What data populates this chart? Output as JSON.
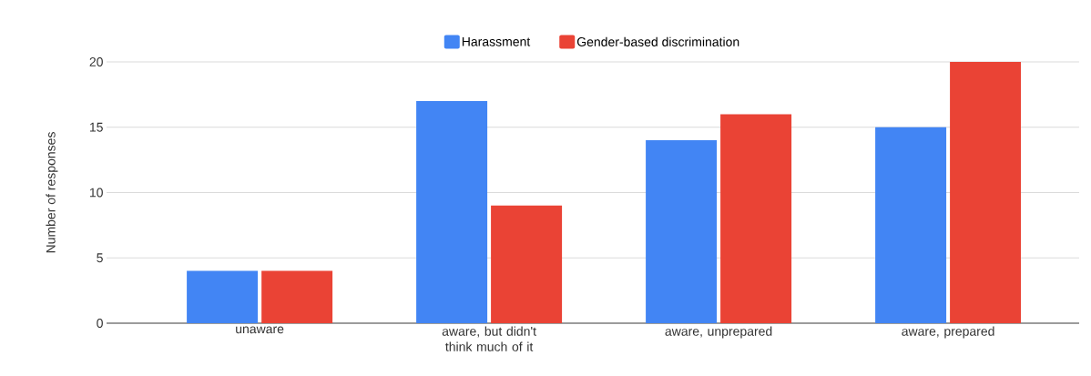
{
  "chart_data": {
    "type": "bar",
    "ylabel": "Number of responses",
    "categories": [
      "unaware",
      "aware, but didn't think much of it",
      "aware, unprepared",
      "aware, prepared"
    ],
    "series": [
      {
        "name": "Harassment",
        "color": "#4285f4",
        "values": [
          4,
          17,
          14,
          15
        ]
      },
      {
        "name": "Gender-based discrimination",
        "color": "#ea4335",
        "values": [
          4,
          9,
          16,
          20
        ]
      }
    ],
    "ylim": [
      0,
      20
    ],
    "yticks": [
      0,
      5,
      10,
      15,
      20
    ],
    "grid": "y",
    "legend": "top"
  }
}
